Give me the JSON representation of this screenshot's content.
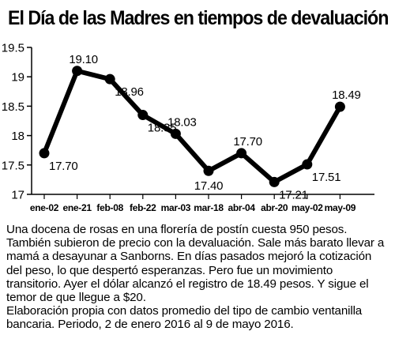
{
  "title": "El Día de las Madres en tiempos de devaluación",
  "description": "Una docena de rosas en una florería de postín cuesta 950 pesos. También subieron de precio con la devaluación. Sale más barato llevar a mamá a desayunar a Sanborns. En días pasados mejoró la cotización del peso, lo que despertó esperanzas. Pero fue un movimiento transitorio. Ayer el dólar alcanzó el registro de 18.49 pesos. Y sigue el temor de que llegue a $20.",
  "source": "Elaboración propia con datos promedio del tipo de cambio ventanilla bancaria. Periodo, 2 de enero 2016 al 9 de mayo 2016.",
  "chart_data": {
    "type": "line",
    "categories": [
      "ene-02",
      "ene-21",
      "feb-08",
      "feb-22",
      "mar-03",
      "mar-18",
      "abr-04",
      "abr-20",
      "may-02",
      "may-09"
    ],
    "values": [
      17.7,
      19.1,
      18.96,
      18.35,
      18.03,
      17.4,
      17.7,
      17.21,
      17.51,
      18.49
    ],
    "value_labels": [
      "17.70",
      "19.10",
      "18.96",
      "18.35",
      "18.03",
      "17.40",
      "17.70",
      "17.21",
      "17.51",
      "18.49"
    ],
    "label_positions": [
      "right",
      "above",
      "right",
      "right",
      "above",
      "below",
      "above",
      "right",
      "right",
      "above"
    ],
    "yticks": [
      "17",
      "17.5",
      "18",
      "18.5",
      "19",
      "19.5"
    ],
    "ylim": [
      17,
      19.5
    ],
    "grid": false,
    "line_color": "#000000"
  }
}
